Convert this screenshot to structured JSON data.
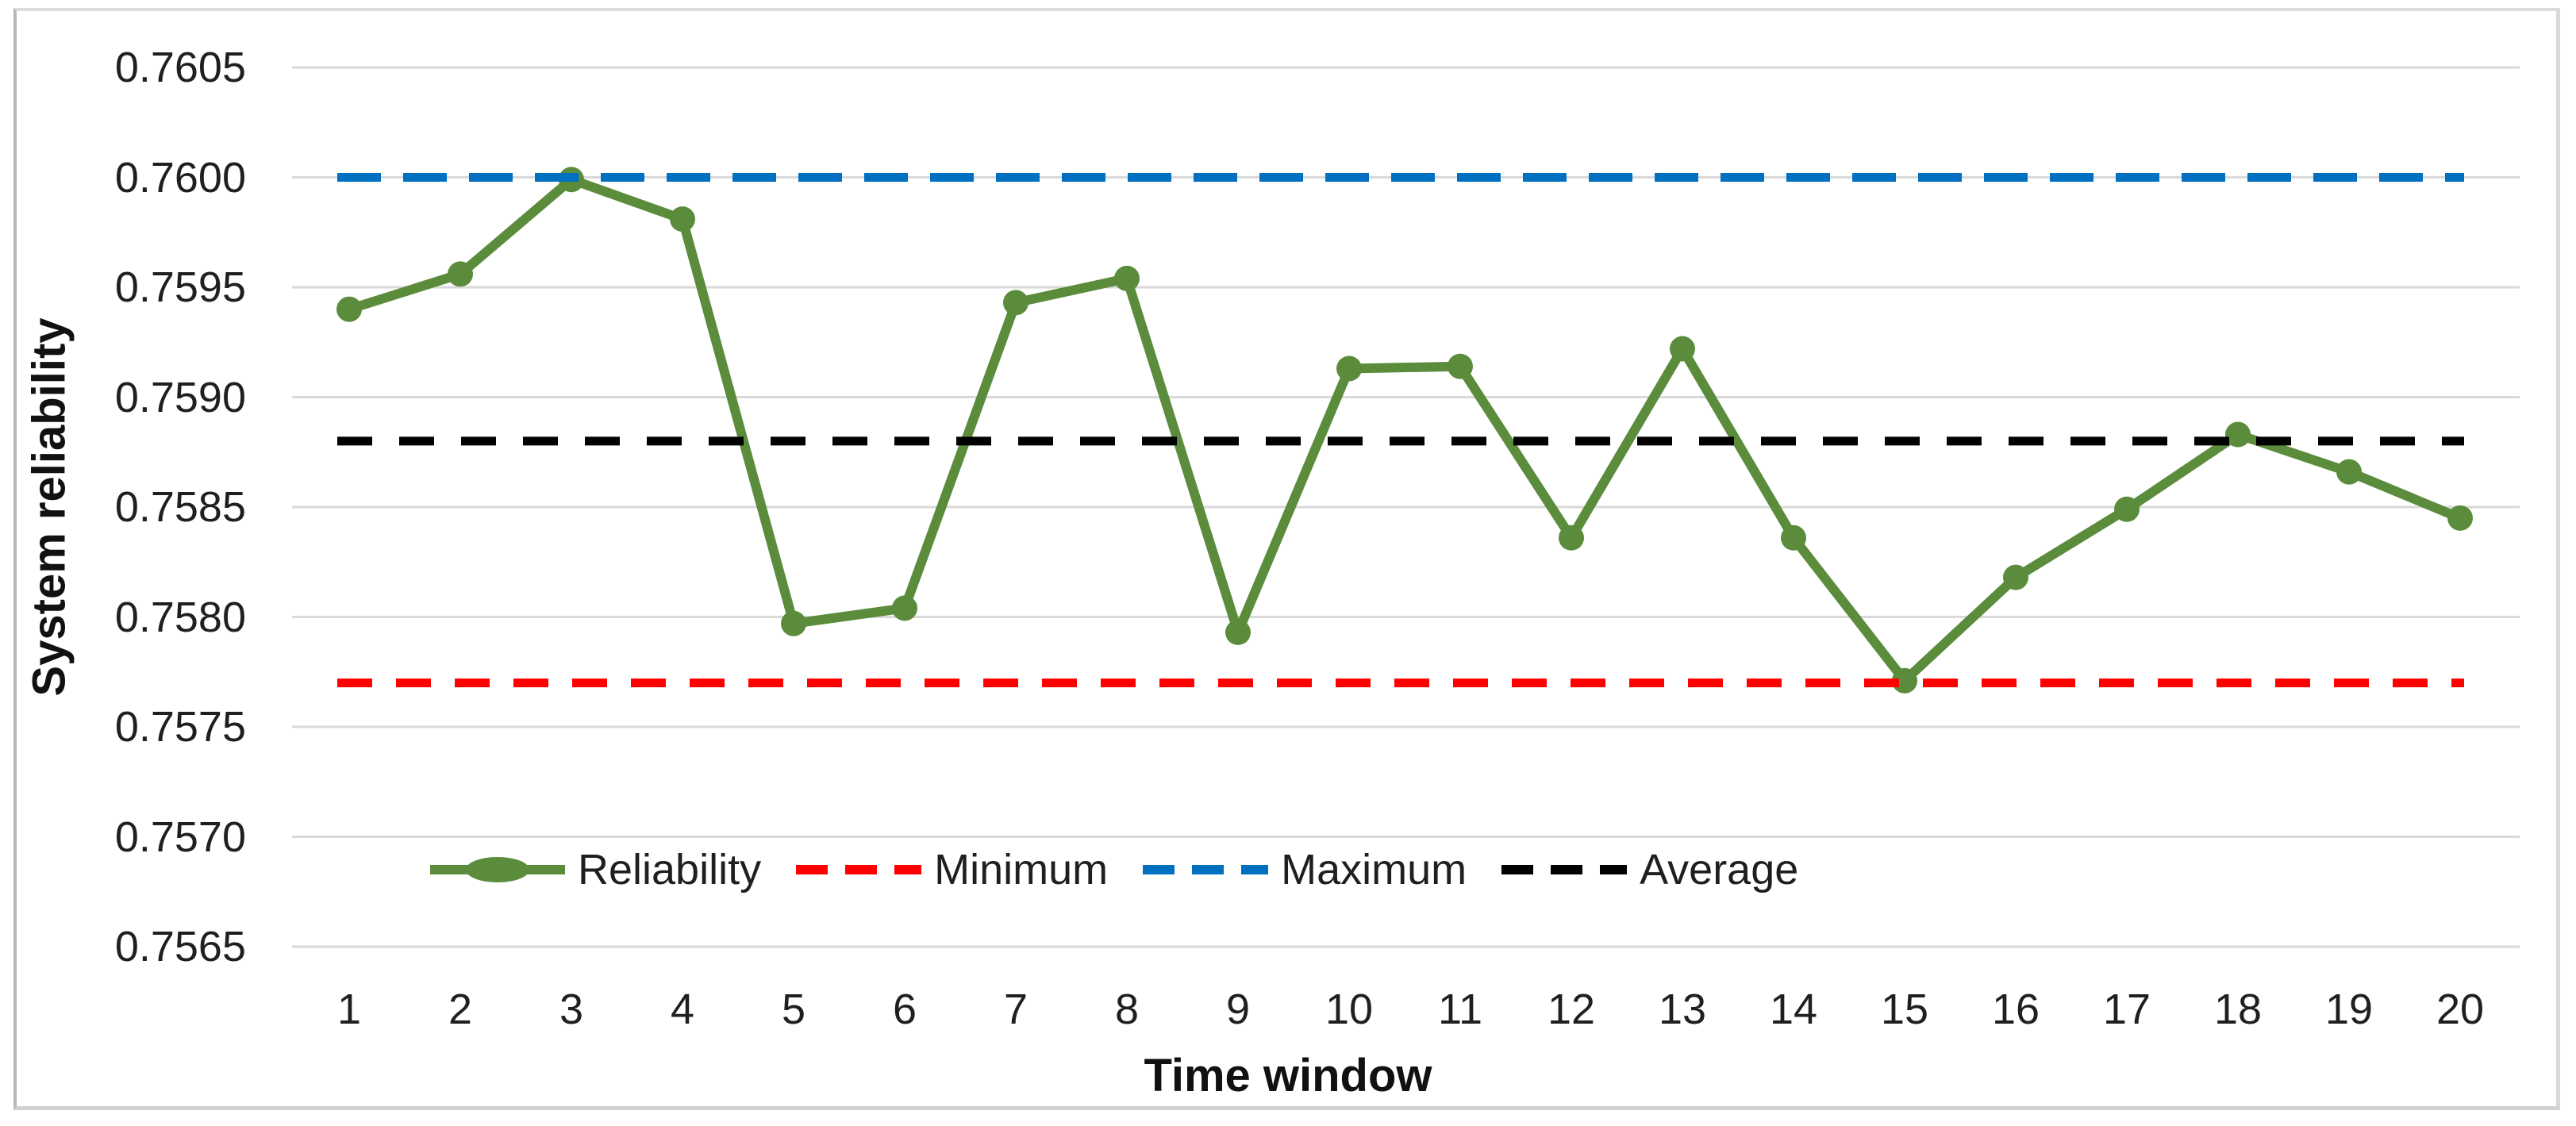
{
  "axes": {
    "y_title": "System reliability",
    "x_title": "Time window",
    "y_tick_labels": [
      "0.7605",
      "0.7600",
      "0.7595",
      "0.7590",
      "0.7585",
      "0.7580",
      "0.7575",
      "0.7570",
      "0.7565"
    ],
    "x_tick_labels": [
      "1",
      "2",
      "3",
      "4",
      "5",
      "6",
      "7",
      "8",
      "9",
      "10",
      "11",
      "12",
      "13",
      "14",
      "15",
      "16",
      "17",
      "18",
      "19",
      "20"
    ]
  },
  "legend": {
    "items": [
      {
        "label": "Reliability",
        "style": "line-marker",
        "color": "#5a8c3c"
      },
      {
        "label": "Minimum",
        "style": "dashed",
        "color": "#ff0000"
      },
      {
        "label": "Maximum",
        "style": "dashed",
        "color": "#0070c0"
      },
      {
        "label": "Average",
        "style": "dashed",
        "color": "#000000"
      }
    ]
  },
  "chart_data": {
    "type": "line",
    "title": "",
    "xlabel": "Time window",
    "ylabel": "System reliability",
    "x": [
      1,
      2,
      3,
      4,
      5,
      6,
      7,
      8,
      9,
      10,
      11,
      12,
      13,
      14,
      15,
      16,
      17,
      18,
      19,
      20
    ],
    "series": [
      {
        "name": "Reliability",
        "style": "solid-with-markers",
        "color": "#5a8c3c",
        "values": [
          0.7594,
          0.75956,
          0.75999,
          0.75981,
          0.75797,
          0.75804,
          0.75943,
          0.75954,
          0.75793,
          0.75913,
          0.75914,
          0.75836,
          0.75922,
          0.75836,
          0.75771,
          0.75818,
          0.75849,
          0.75883,
          0.75866,
          0.75845
        ]
      },
      {
        "name": "Minimum",
        "style": "dashed-constant",
        "color": "#ff0000",
        "value": 0.7577
      },
      {
        "name": "Maximum",
        "style": "dashed-constant",
        "color": "#0070c0",
        "value": 0.76
      },
      {
        "name": "Average",
        "style": "dashed-constant",
        "color": "#000000",
        "value": 0.7588
      }
    ],
    "ylim": [
      0.7565,
      0.7605
    ],
    "ytick_step": 0.0005,
    "xlim": [
      1,
      20
    ],
    "grid": true,
    "gridline_color": "#d9d9d9",
    "legend_position": "bottom"
  }
}
